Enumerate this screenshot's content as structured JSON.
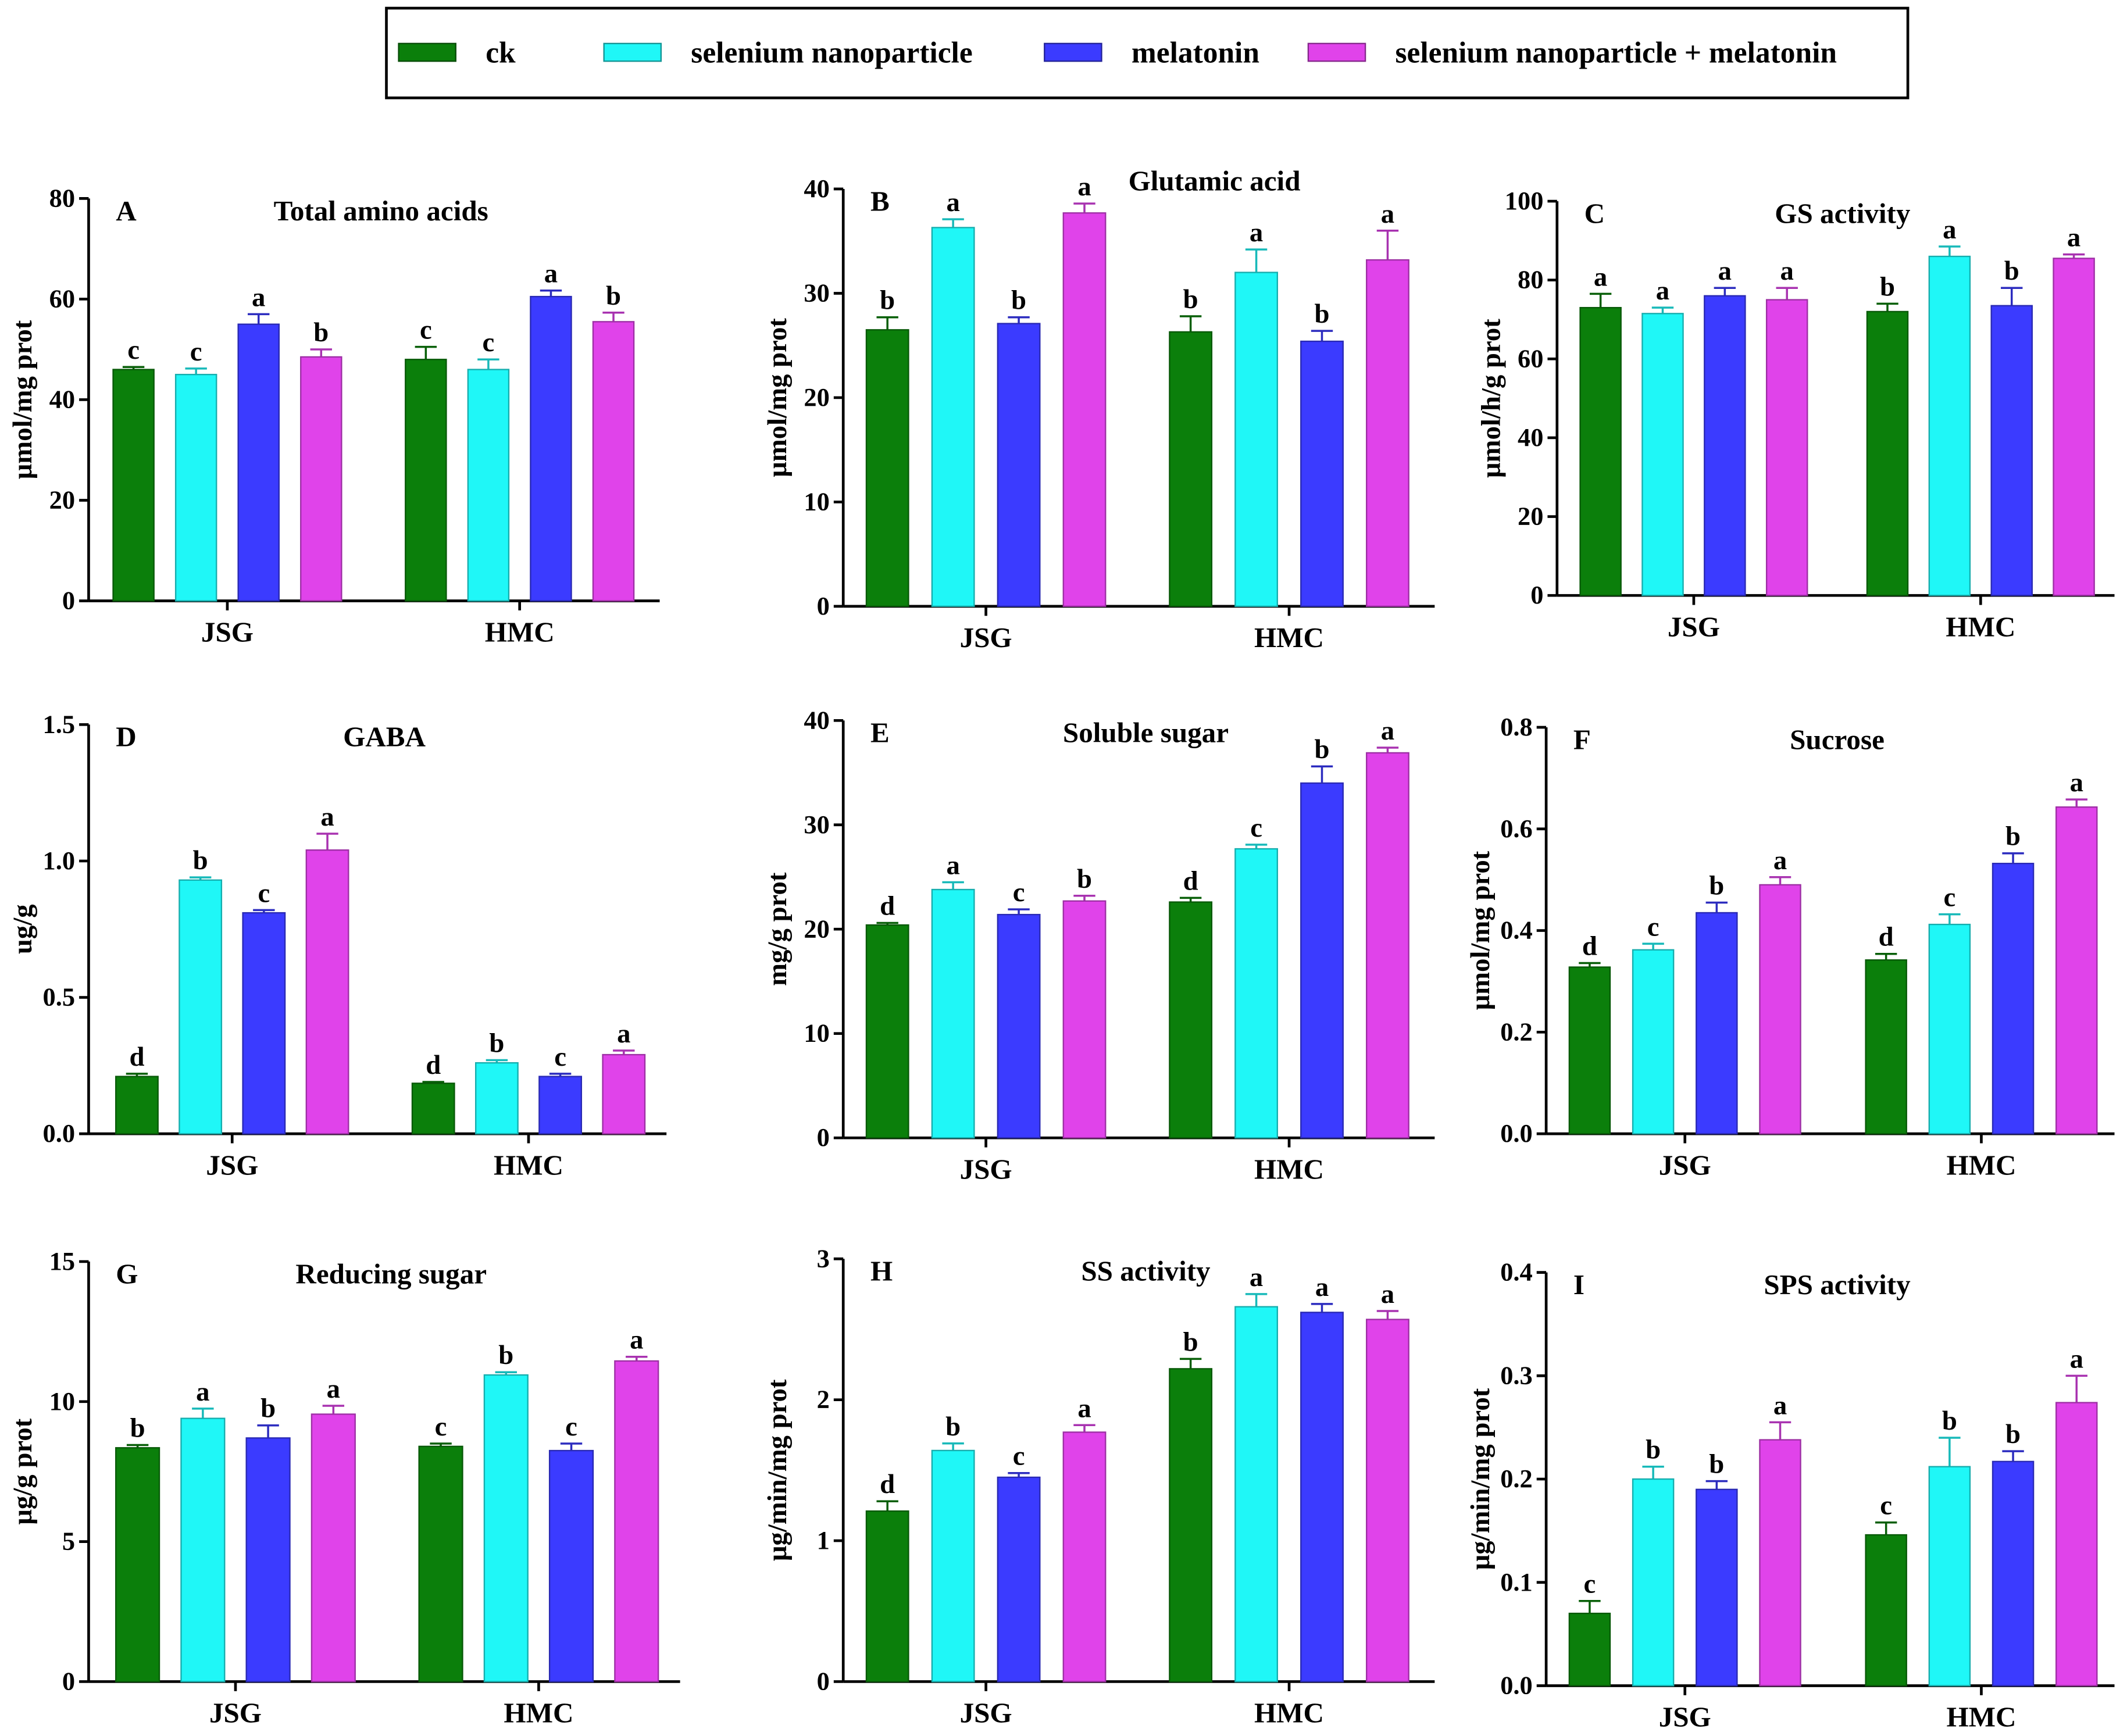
{
  "legend": {
    "items": [
      {
        "label": "ck",
        "color": "#0b7f0b"
      },
      {
        "label": "selenium nanoparticle",
        "color": "#1ff7f7"
      },
      {
        "label": "melatonin",
        "color": "#3b3bff"
      },
      {
        "label": "selenium nanoparticle + melatonin",
        "color": "#e043ea"
      }
    ]
  },
  "chart_data": [
    {
      "type": "bar",
      "panel": "A",
      "title": "Total amino acids",
      "ylabel": "μmol/mg prot",
      "ylim": [
        0,
        80
      ],
      "yticks": [
        "0",
        "20",
        "40",
        "60",
        "80"
      ],
      "categories": [
        "JSG",
        "HMC"
      ],
      "series": [
        {
          "name": "ck",
          "values": [
            46,
            48
          ],
          "errors": [
            0.5,
            2.5
          ],
          "letters": [
            "c",
            "c"
          ]
        },
        {
          "name": "selenium nanoparticle",
          "values": [
            45,
            46
          ],
          "errors": [
            1.2,
            2
          ],
          "letters": [
            "c",
            "c"
          ]
        },
        {
          "name": "melatonin",
          "values": [
            55,
            60.5
          ],
          "errors": [
            2,
            1.2
          ],
          "letters": [
            "a",
            "a"
          ]
        },
        {
          "name": "selenium nanoparticle + melatonin",
          "values": [
            48.5,
            55.5
          ],
          "errors": [
            1.5,
            1.8
          ],
          "letters": [
            "b",
            "b"
          ]
        }
      ]
    },
    {
      "type": "bar",
      "panel": "B",
      "title": "Glutamic acid",
      "ylabel": "μmol/mg prot",
      "ylim": [
        0,
        40
      ],
      "yticks": [
        "0",
        "10",
        "20",
        "30",
        "40"
      ],
      "categories": [
        "JSG",
        "HMC"
      ],
      "series": [
        {
          "name": "ck",
          "values": [
            26.5,
            26.3
          ],
          "errors": [
            1.2,
            1.5
          ],
          "letters": [
            "b",
            "b"
          ]
        },
        {
          "name": "selenium nanoparticle",
          "values": [
            36.3,
            32
          ],
          "errors": [
            0.8,
            2.2
          ],
          "letters": [
            "a",
            "a"
          ]
        },
        {
          "name": "melatonin",
          "values": [
            27.1,
            25.4
          ],
          "errors": [
            0.6,
            1
          ],
          "letters": [
            "b",
            "b"
          ]
        },
        {
          "name": "selenium nanoparticle + melatonin",
          "values": [
            37.7,
            33.2
          ],
          "errors": [
            0.9,
            2.8
          ],
          "letters": [
            "a",
            "a"
          ]
        }
      ]
    },
    {
      "type": "bar",
      "panel": "C",
      "title": "GS activity",
      "ylabel": "μmol/h/g prot",
      "ylim": [
        0,
        100
      ],
      "yticks": [
        "0",
        "20",
        "40",
        "60",
        "80",
        "100"
      ],
      "categories": [
        "JSG",
        "HMC"
      ],
      "series": [
        {
          "name": "ck",
          "values": [
            73,
            72
          ],
          "errors": [
            3.5,
            2
          ],
          "letters": [
            "a",
            "b"
          ]
        },
        {
          "name": "selenium nanoparticle",
          "values": [
            71.5,
            86
          ],
          "errors": [
            1.5,
            2.5
          ],
          "letters": [
            "a",
            "a"
          ]
        },
        {
          "name": "melatonin",
          "values": [
            76,
            73.5
          ],
          "errors": [
            2,
            4.5
          ],
          "letters": [
            "a",
            "b"
          ]
        },
        {
          "name": "selenium nanoparticle + melatonin",
          "values": [
            75,
            85.5
          ],
          "errors": [
            3,
            1
          ],
          "letters": [
            "a",
            "a"
          ]
        }
      ]
    },
    {
      "type": "bar",
      "panel": "D",
      "title": "GABA",
      "ylabel": "ug/g",
      "ylim": [
        0,
        1.5
      ],
      "yticks": [
        "0.0",
        "0.5",
        "1.0",
        "1.5"
      ],
      "categories": [
        "JSG",
        "HMC"
      ],
      "series": [
        {
          "name": "ck",
          "values": [
            0.21,
            0.185
          ],
          "errors": [
            0.01,
            0.005
          ],
          "letters": [
            "d",
            "d"
          ]
        },
        {
          "name": "selenium nanoparticle",
          "values": [
            0.93,
            0.26
          ],
          "errors": [
            0.01,
            0.01
          ],
          "letters": [
            "b",
            "b"
          ]
        },
        {
          "name": "melatonin",
          "values": [
            0.81,
            0.21
          ],
          "errors": [
            0.01,
            0.01
          ],
          "letters": [
            "c",
            "c"
          ]
        },
        {
          "name": "selenium nanoparticle + melatonin",
          "values": [
            1.04,
            0.29
          ],
          "errors": [
            0.06,
            0.015
          ],
          "letters": [
            "a",
            "a"
          ]
        }
      ]
    },
    {
      "type": "bar",
      "panel": "E",
      "title": "Soluble sugar",
      "ylabel": "mg/g prot",
      "ylim": [
        0,
        40
      ],
      "yticks": [
        "0",
        "10",
        "20",
        "30",
        "40"
      ],
      "categories": [
        "JSG",
        "HMC"
      ],
      "series": [
        {
          "name": "ck",
          "values": [
            20.4,
            22.6
          ],
          "errors": [
            0.2,
            0.4
          ],
          "letters": [
            "d",
            "d"
          ]
        },
        {
          "name": "selenium nanoparticle",
          "values": [
            23.8,
            27.7
          ],
          "errors": [
            0.7,
            0.4
          ],
          "letters": [
            "a",
            "c"
          ]
        },
        {
          "name": "melatonin",
          "values": [
            21.4,
            34
          ],
          "errors": [
            0.5,
            1.6
          ],
          "letters": [
            "c",
            "b"
          ]
        },
        {
          "name": "selenium nanoparticle + melatonin",
          "values": [
            22.7,
            36.9
          ],
          "errors": [
            0.5,
            0.5
          ],
          "letters": [
            "b",
            "a"
          ]
        }
      ]
    },
    {
      "type": "bar",
      "panel": "F",
      "title": "Sucrose",
      "ylabel": "μmol/mg prot",
      "ylim": [
        0,
        0.8
      ],
      "yticks": [
        "0.0",
        "0.2",
        "0.4",
        "0.6",
        "0.8"
      ],
      "categories": [
        "JSG",
        "HMC"
      ],
      "series": [
        {
          "name": "ck",
          "values": [
            0.328,
            0.342
          ],
          "errors": [
            0.008,
            0.012
          ],
          "letters": [
            "d",
            "d"
          ]
        },
        {
          "name": "selenium nanoparticle",
          "values": [
            0.362,
            0.412
          ],
          "errors": [
            0.012,
            0.02
          ],
          "letters": [
            "c",
            "c"
          ]
        },
        {
          "name": "melatonin",
          "values": [
            0.435,
            0.532
          ],
          "errors": [
            0.02,
            0.02
          ],
          "letters": [
            "b",
            "b"
          ]
        },
        {
          "name": "selenium nanoparticle + melatonin",
          "values": [
            0.49,
            0.643
          ],
          "errors": [
            0.015,
            0.015
          ],
          "letters": [
            "a",
            "a"
          ]
        }
      ]
    },
    {
      "type": "bar",
      "panel": "G",
      "title": "Reducing sugar",
      "ylabel": "μg/g prot",
      "ylim": [
        0,
        15
      ],
      "yticks": [
        "0",
        "5",
        "10",
        "15"
      ],
      "categories": [
        "JSG",
        "HMC"
      ],
      "series": [
        {
          "name": "ck",
          "values": [
            8.35,
            8.4
          ],
          "errors": [
            0.1,
            0.1
          ],
          "letters": [
            "b",
            "c"
          ]
        },
        {
          "name": "selenium nanoparticle",
          "values": [
            9.4,
            10.95
          ],
          "errors": [
            0.35,
            0.1
          ],
          "letters": [
            "a",
            "b"
          ]
        },
        {
          "name": "melatonin",
          "values": [
            8.7,
            8.25
          ],
          "errors": [
            0.45,
            0.25
          ],
          "letters": [
            "b",
            "c"
          ]
        },
        {
          "name": "selenium nanoparticle + melatonin",
          "values": [
            9.55,
            11.45
          ],
          "errors": [
            0.3,
            0.15
          ],
          "letters": [
            "a",
            "a"
          ]
        }
      ]
    },
    {
      "type": "bar",
      "panel": "H",
      "title": "SS activity",
      "ylabel": "μg/min/mg prot",
      "ylim": [
        0,
        3
      ],
      "yticks": [
        "0",
        "1",
        "2",
        "3"
      ],
      "categories": [
        "JSG",
        "HMC"
      ],
      "series": [
        {
          "name": "ck",
          "values": [
            1.21,
            2.22
          ],
          "errors": [
            0.07,
            0.07
          ],
          "letters": [
            "d",
            "b"
          ]
        },
        {
          "name": "selenium nanoparticle",
          "values": [
            1.64,
            2.66
          ],
          "errors": [
            0.05,
            0.09
          ],
          "letters": [
            "b",
            "a"
          ]
        },
        {
          "name": "melatonin",
          "values": [
            1.45,
            2.62
          ],
          "errors": [
            0.03,
            0.06
          ],
          "letters": [
            "c",
            "a"
          ]
        },
        {
          "name": "selenium nanoparticle + melatonin",
          "values": [
            1.77,
            2.57
          ],
          "errors": [
            0.05,
            0.06
          ],
          "letters": [
            "a",
            "a"
          ]
        }
      ]
    },
    {
      "type": "bar",
      "panel": "I",
      "title": "SPS activity",
      "ylabel": "μg/min/mg prot",
      "ylim": [
        0,
        0.4
      ],
      "yticks": [
        "0.0",
        "0.1",
        "0.2",
        "0.3",
        "0.4"
      ],
      "categories": [
        "JSG",
        "HMC"
      ],
      "series": [
        {
          "name": "ck",
          "values": [
            0.07,
            0.146
          ],
          "errors": [
            0.012,
            0.012
          ],
          "letters": [
            "c",
            "c"
          ]
        },
        {
          "name": "selenium nanoparticle",
          "values": [
            0.2,
            0.212
          ],
          "errors": [
            0.012,
            0.028
          ],
          "letters": [
            "b",
            "b"
          ]
        },
        {
          "name": "melatonin",
          "values": [
            0.19,
            0.217
          ],
          "errors": [
            0.008,
            0.01
          ],
          "letters": [
            "b",
            "b"
          ]
        },
        {
          "name": "selenium nanoparticle + melatonin",
          "values": [
            0.238,
            0.274
          ],
          "errors": [
            0.017,
            0.026
          ],
          "letters": [
            "a",
            "a"
          ]
        }
      ]
    }
  ]
}
